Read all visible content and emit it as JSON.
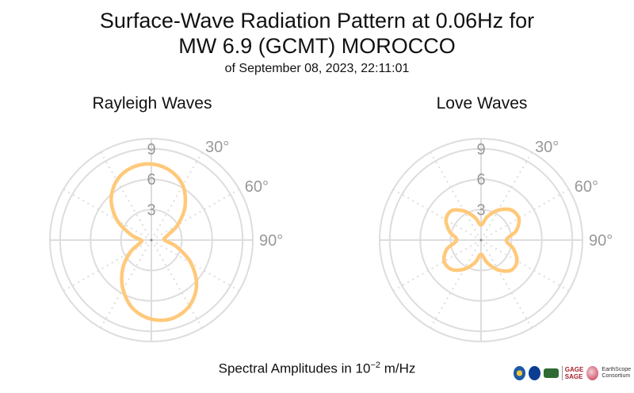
{
  "header": {
    "title_line1": "Surface-Wave Radiation Pattern at 0.06Hz for",
    "title_line2": "MW 6.9 (GCMT) MOROCCO",
    "subtitle": "of September 08, 2023, 22:11:01"
  },
  "footer": {
    "label_prefix": "Spectral Amplitudes in ",
    "label_base": "10",
    "label_exp": "−2",
    "label_unit": " m/Hz"
  },
  "logos": {
    "gage_top": "GAGE",
    "gage_bottom": "SAGE",
    "earthscope_top": "EarthScope",
    "earthscope_bottom": "Consortium"
  },
  "colors": {
    "pattern": "#FFC97A",
    "grid": "#dddddd",
    "tick": "#999999"
  },
  "chart_data": [
    {
      "type": "polar-line",
      "title": "Rayleigh Waves",
      "r_ticks": [
        "3",
        "6",
        "9"
      ],
      "angle_ticks": [
        "30°",
        "60°",
        "90°"
      ],
      "rmax": 10,
      "series": [
        {
          "theta": [
            0,
            15,
            30,
            45,
            60,
            75,
            90,
            105,
            120,
            135,
            150,
            165,
            180,
            195,
            210,
            225,
            240,
            255,
            270,
            285,
            300,
            315,
            330,
            345
          ],
          "r": [
            7.5,
            7.1,
            6.2,
            4.7,
            3.0,
            1.6,
            1.3,
            2.6,
            4.5,
            6.3,
            7.5,
            8.0,
            7.8,
            7.0,
            5.6,
            4.0,
            2.4,
            1.2,
            1.0,
            2.1,
            3.9,
            5.6,
            6.8,
            7.4
          ]
        }
      ]
    },
    {
      "type": "polar-line",
      "title": "Love Waves",
      "r_ticks": [
        "3",
        "6",
        "9"
      ],
      "angle_ticks": [
        "30°",
        "60°",
        "90°"
      ],
      "rmax": 10,
      "series": [
        {
          "theta": [
            0,
            15,
            30,
            45,
            60,
            75,
            90,
            105,
            120,
            135,
            150,
            165,
            180,
            195,
            210,
            225,
            240,
            255,
            270,
            285,
            300,
            315,
            330,
            345
          ],
          "r": [
            1.5,
            2.4,
            3.4,
            4.2,
            4.3,
            3.6,
            2.5,
            3.3,
            4.1,
            4.2,
            3.4,
            2.3,
            1.4,
            2.3,
            3.3,
            4.1,
            4.2,
            3.5,
            2.4,
            3.2,
            4.0,
            4.1,
            3.3,
            2.3
          ]
        }
      ]
    }
  ]
}
